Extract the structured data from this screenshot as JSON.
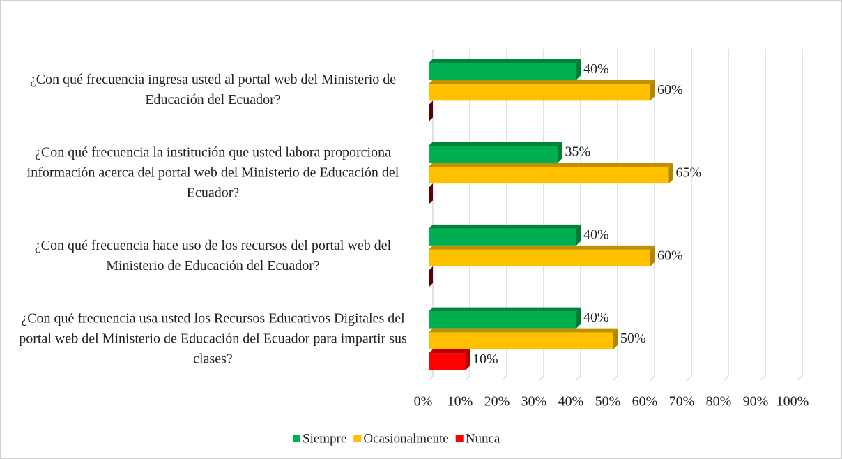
{
  "chart_data": {
    "type": "bar",
    "orientation": "horizontal",
    "categories": [
      "¿Con qué frecuencia ingresa usted al portal web del Ministerio de Educación del Ecuador?",
      "¿Con qué frecuencia la institución que usted labora proporciona información acerca del portal web del Ministerio de Educación del Ecuador?",
      "¿Con qué frecuencia hace uso de los recursos del portal web del Ministerio de Educación del Ecuador?",
      "¿Con qué frecuencia usa usted los Recursos Educativos Digitales del portal web del Ministerio de Educación del Ecuador para impartir sus clases?"
    ],
    "series": [
      {
        "name": "Siempre",
        "color": "#00b050",
        "values": [
          40,
          35,
          40,
          40
        ],
        "value_labels": [
          "40%",
          "35%",
          "40%",
          "40%"
        ]
      },
      {
        "name": "Ocasionalmente",
        "color": "#ffc000",
        "values": [
          60,
          65,
          60,
          50
        ],
        "value_labels": [
          "60%",
          "65%",
          "60%",
          "50%"
        ]
      },
      {
        "name": "Nunca",
        "color": "#ff0000",
        "values": [
          0,
          0,
          0,
          10
        ],
        "value_labels": [
          null,
          null,
          null,
          "10%"
        ]
      }
    ],
    "xlim": [
      0,
      100
    ],
    "xticks": [
      {
        "value": 0,
        "label": "0%"
      },
      {
        "value": 10,
        "label": "10%"
      },
      {
        "value": 20,
        "label": "20%"
      },
      {
        "value": 30,
        "label": "30%"
      },
      {
        "value": 40,
        "label": "40%"
      },
      {
        "value": 50,
        "label": "50%"
      },
      {
        "value": 60,
        "label": "60%"
      },
      {
        "value": 70,
        "label": "70%"
      },
      {
        "value": 80,
        "label": "80%"
      },
      {
        "value": 90,
        "label": "90%"
      },
      {
        "value": 100,
        "label": "100%"
      }
    ],
    "grid": true,
    "legend": "bottom"
  }
}
